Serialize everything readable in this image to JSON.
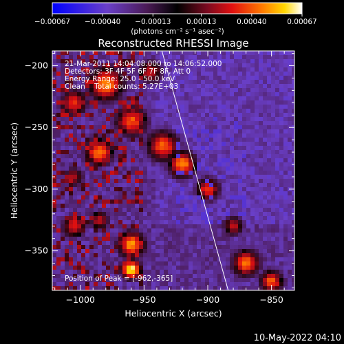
{
  "chart_data": {
    "type": "heatmap",
    "title": "Reconstructed RHESSI Image",
    "xlabel": "Heliocentric X (arcsec)",
    "ylabel": "Heliocentric Y (arcsec)",
    "xlim": [
      -1022,
      -832
    ],
    "ylim": [
      -382,
      -188
    ],
    "xticks": [
      -1000,
      -950,
      -900,
      -850
    ],
    "yticks": [
      -200,
      -250,
      -300,
      -350
    ],
    "xtick_labels": [
      "−1000",
      "−950",
      "−900",
      "−850"
    ],
    "ytick_labels": [
      "−200",
      "−250",
      "−300",
      "−350"
    ],
    "colorbar": {
      "min": -0.00067,
      "max": 0.00067,
      "tick_values": [
        -0.00067,
        -0.0004,
        -0.00013,
        0.00013,
        0.0004,
        0.00067
      ],
      "tick_labels": [
        "−0.00067",
        "−0.00040",
        "−0.00013",
        "0.00013",
        "0.00040",
        "0.00067"
      ],
      "unit_label": "(photons cm⁻² s⁻¹ asec⁻²)",
      "colors": [
        "#0000ff",
        "#6a3fc8",
        "#4a1a55",
        "#2a0a1a",
        "#000000",
        "#7a0a20",
        "#e01010",
        "#ff7a00",
        "#ffd700",
        "#ffffff"
      ]
    },
    "info_lines": [
      "21-Mar-2011 14:04:08.000 to 14:06:52.000",
      "Detectors: 3F 4F 5F 6F 7F 8F, Att 0",
      "Energy Range: 25.0 - 50.0 keV",
      "Clean    Total counts: 5.27E+03"
    ],
    "peak_label": "Position of Peak = [-962,-365]",
    "peak_position": [
      -962,
      -365
    ],
    "limb_line": [
      [
        -936,
        -188
      ],
      [
        -884,
        -382
      ]
    ],
    "grid": false
  },
  "footer": {
    "date": "10-May-2022 04:10"
  }
}
